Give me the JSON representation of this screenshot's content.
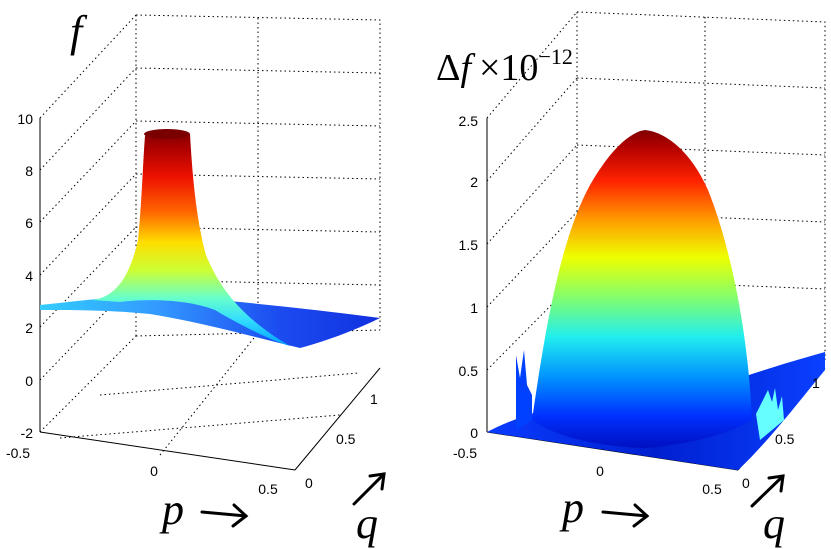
{
  "chart_data": [
    {
      "type": "surface",
      "title": "f",
      "xlabel": "p",
      "ylabel": "q",
      "zlabel": "",
      "xlim": [
        -0.5,
        0.5
      ],
      "ylim": [
        0,
        1
      ],
      "zlim": [
        -2,
        10
      ],
      "x_ticks": [
        "-0.5",
        "0",
        "0.5"
      ],
      "y_ticks": [
        "0",
        "0.5",
        "1"
      ],
      "z_ticks": [
        "10",
        "8",
        "6",
        "4",
        "2",
        "0",
        "-2"
      ],
      "colormap": "jet",
      "grid": true,
      "peak_value": 9.5,
      "baseline_value": 2.5
    },
    {
      "type": "surface",
      "title": "Δf ×10−12",
      "title_parts": {
        "delta": "Δ",
        "f": "f",
        "times": "×10",
        "exp": "−12"
      },
      "xlabel": "p",
      "ylabel": "q",
      "zlabel": "",
      "xlim": [
        -0.5,
        0.5
      ],
      "ylim": [
        0,
        1
      ],
      "zlim": [
        0,
        2.5
      ],
      "x_ticks": [
        "-0.5",
        "0",
        "0.5"
      ],
      "y_ticks": [
        "0",
        "0.5",
        "1"
      ],
      "z_ticks": [
        "2.5",
        "2",
        "1.5",
        "1",
        "0.5",
        "0"
      ],
      "colormap": "jet",
      "grid": true,
      "peak_value": 2.4,
      "baseline_value": 0
    }
  ]
}
